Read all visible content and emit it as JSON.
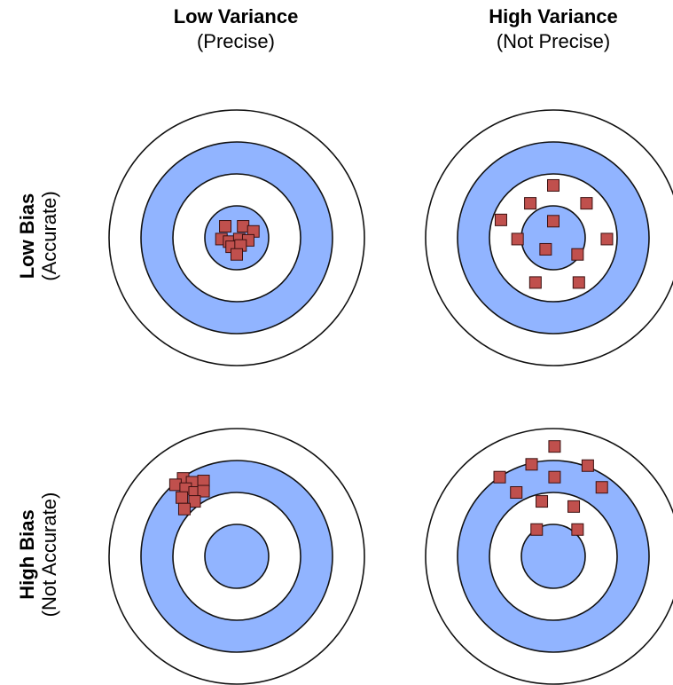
{
  "columns": [
    {
      "title": "Low Variance",
      "subtitle": "(Precise)"
    },
    {
      "title": "High Variance",
      "subtitle": "(Not Precise)"
    }
  ],
  "rows": [
    {
      "title": "Low Bias",
      "subtitle": "(Accurate)"
    },
    {
      "title": "High Bias",
      "subtitle": "(Not Accurate)"
    }
  ],
  "colors": {
    "ring_blue": "#91b4ff",
    "ring_white": "#ffffff",
    "marker": "#c0504d",
    "outline": "#111111"
  },
  "targets": [
    {
      "name": "low-bias-low-variance",
      "hits": [
        [
          -0.09,
          -0.09
        ],
        [
          0.05,
          -0.09
        ],
        [
          0.13,
          -0.05
        ],
        [
          -0.12,
          0.01
        ],
        [
          -0.06,
          0.03
        ],
        [
          0.02,
          0.01
        ],
        [
          0.09,
          0.02
        ],
        [
          -0.04,
          0.07
        ],
        [
          0.03,
          0.06
        ],
        [
          0.0,
          0.13
        ]
      ]
    },
    {
      "name": "low-bias-high-variance",
      "hits": [
        [
          0.0,
          -0.41
        ],
        [
          -0.18,
          -0.27
        ],
        [
          0.26,
          -0.27
        ],
        [
          -0.41,
          -0.14
        ],
        [
          0.0,
          -0.13
        ],
        [
          -0.28,
          0.01
        ],
        [
          0.42,
          0.01
        ],
        [
          -0.06,
          0.09
        ],
        [
          0.19,
          0.13
        ],
        [
          -0.14,
          0.35
        ],
        [
          0.2,
          0.35
        ]
      ]
    },
    {
      "name": "high-bias-low-variance",
      "hits": [
        [
          -0.42,
          -0.61
        ],
        [
          -0.35,
          -0.58
        ],
        [
          -0.26,
          -0.59
        ],
        [
          -0.48,
          -0.56
        ],
        [
          -0.4,
          -0.53
        ],
        [
          -0.33,
          -0.5
        ],
        [
          -0.26,
          -0.51
        ],
        [
          -0.43,
          -0.46
        ],
        [
          -0.33,
          -0.43
        ],
        [
          -0.41,
          -0.37
        ]
      ]
    },
    {
      "name": "high-bias-high-variance",
      "hits": [
        [
          0.01,
          -0.86
        ],
        [
          -0.17,
          -0.72
        ],
        [
          0.27,
          -0.71
        ],
        [
          -0.42,
          -0.62
        ],
        [
          0.01,
          -0.62
        ],
        [
          0.38,
          -0.54
        ],
        [
          -0.29,
          -0.5
        ],
        [
          -0.09,
          -0.43
        ],
        [
          0.16,
          -0.39
        ],
        [
          -0.13,
          -0.21
        ],
        [
          0.19,
          -0.21
        ]
      ]
    }
  ]
}
